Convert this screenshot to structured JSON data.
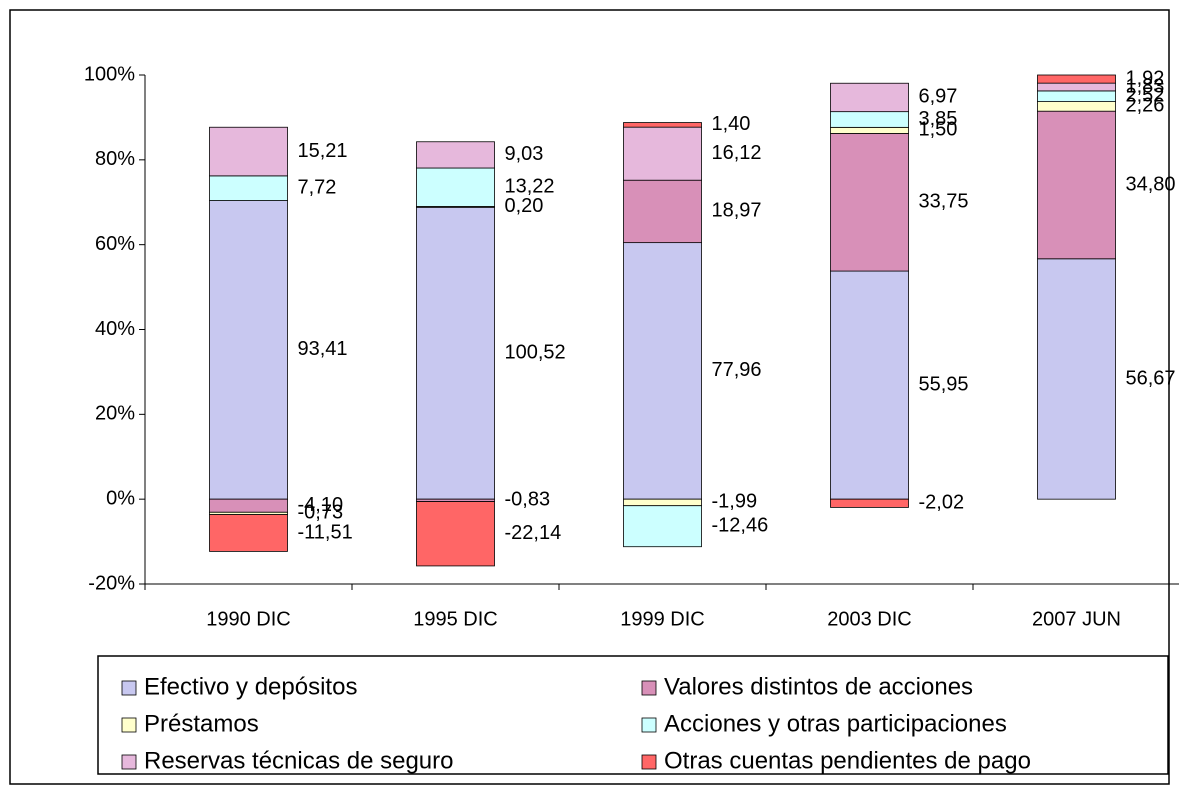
{
  "chart_data": {
    "type": "bar",
    "stacked": "percent",
    "categories": [
      "1990 DIC",
      "1995 DIC",
      "1999 DIC",
      "2003 DIC",
      "2007 JUN"
    ],
    "series": [
      {
        "name": "Efectivo y depósitos",
        "color": "#c8c8f0",
        "values": [
          93.41,
          100.52,
          77.96,
          55.95,
          56.67
        ],
        "value_labels": [
          "93,41",
          "100,52",
          "77,96",
          "55,95",
          "56,67"
        ]
      },
      {
        "name": "Valores distintos de acciones",
        "color": "#d890b8",
        "values": [
          -4.1,
          -0.83,
          18.97,
          33.75,
          34.8
        ],
        "value_labels": [
          "-4,10",
          "-0,83",
          "18,97",
          "33,75",
          "34,80"
        ]
      },
      {
        "name": "Préstamos",
        "color": "#ffffcc",
        "values": [
          -0.73,
          0.2,
          -1.99,
          1.5,
          2.26
        ],
        "value_labels": [
          "-0,73",
          "0,20",
          "-1,99",
          "1,50",
          "2,26"
        ]
      },
      {
        "name": "Acciones y otras participaciones",
        "color": "#ccffff",
        "values": [
          7.72,
          13.22,
          -12.46,
          3.85,
          2.52
        ],
        "value_labels": [
          "7,72",
          "13,22",
          "-12,46",
          "3,85",
          "2,52"
        ]
      },
      {
        "name": "Reservas técnicas de seguro",
        "color": "#e6b8dc",
        "values": [
          15.21,
          9.03,
          16.12,
          6.97,
          1.83
        ],
        "value_labels": [
          "15,21",
          "9,03",
          "16,12",
          "6,97",
          "1,83"
        ]
      },
      {
        "name": "Otras cuentas pendientes de pago",
        "color": "#ff6666",
        "values": [
          -11.51,
          -22.14,
          1.4,
          -2.02,
          1.92
        ],
        "value_labels": [
          "-11,51",
          "-22,14",
          "1,40",
          "-2,02",
          "1,92"
        ]
      }
    ],
    "ylim": [
      -20,
      100
    ],
    "yticks": [
      {
        "value": -20,
        "label": "-20%"
      },
      {
        "value": 0,
        "label": "0%"
      },
      {
        "value": 20,
        "label": "20%"
      },
      {
        "value": 40,
        "label": "40%"
      },
      {
        "value": 60,
        "label": "60%"
      },
      {
        "value": 80,
        "label": "80%"
      },
      {
        "value": 100,
        "label": "100%"
      }
    ],
    "legend": "bottom"
  }
}
